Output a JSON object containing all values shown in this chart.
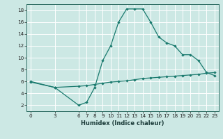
{
  "title": "",
  "xlabel": "Humidex (Indice chaleur)",
  "background_color": "#cce8e4",
  "line_color": "#1a7a6e",
  "grid_color": "#ffffff",
  "xlim": [
    -0.5,
    23.5
  ],
  "ylim": [
    1,
    19
  ],
  "xticks": [
    0,
    3,
    6,
    7,
    8,
    9,
    10,
    11,
    12,
    13,
    14,
    15,
    16,
    17,
    18,
    19,
    20,
    21,
    22,
    23
  ],
  "yticks": [
    2,
    4,
    6,
    8,
    10,
    12,
    14,
    16,
    18
  ],
  "line1_x": [
    0,
    3,
    6,
    7,
    8,
    9,
    10,
    11,
    12,
    13,
    14,
    15,
    16,
    17,
    18,
    19,
    20,
    21,
    22,
    23
  ],
  "line1_y": [
    6,
    5,
    2,
    2.5,
    5,
    9.5,
    12,
    16,
    18.2,
    18.2,
    18.2,
    16,
    13.5,
    12.5,
    12,
    10.5,
    10.5,
    9.5,
    7.5,
    7
  ],
  "line2_x": [
    0,
    3,
    6,
    7,
    8,
    9,
    10,
    11,
    12,
    13,
    14,
    15,
    16,
    17,
    18,
    19,
    20,
    21,
    22,
    23
  ],
  "line2_y": [
    5.9,
    5.0,
    5.2,
    5.3,
    5.5,
    5.7,
    5.9,
    6.0,
    6.1,
    6.3,
    6.5,
    6.6,
    6.7,
    6.8,
    6.9,
    7.0,
    7.1,
    7.2,
    7.4,
    7.5
  ],
  "xlabel_fontsize": 6.0,
  "tick_fontsize": 5.2
}
